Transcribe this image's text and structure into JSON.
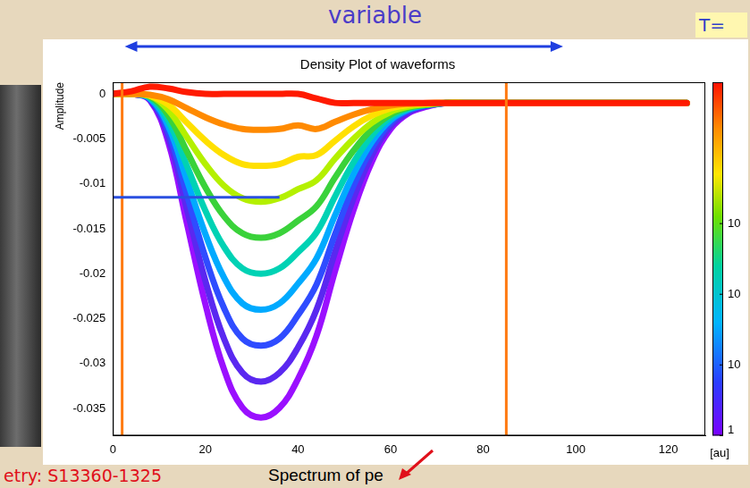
{
  "slide": {
    "title": "variable",
    "corner_text": "T=",
    "footer_left": "etry: S13360-1325",
    "footer_center": "Spectrum of pe"
  },
  "chart_data": {
    "type": "line",
    "title": "Density Plot of waveforms",
    "y_label": "Amplitude",
    "x": [
      0,
      4,
      8,
      12,
      16,
      20,
      24,
      28,
      32,
      36,
      40,
      44,
      48,
      52,
      56,
      60,
      64,
      68,
      72,
      76,
      80,
      84,
      88,
      92,
      96,
      100,
      104,
      108,
      112,
      116,
      120,
      124
    ],
    "series": [
      {
        "color": "#ff1a00",
        "values": [
          0,
          0.0003,
          0.0008,
          0.0006,
          0.0002,
          0,
          0,
          0,
          0,
          0,
          0,
          -0.0005,
          -0.001,
          -0.001,
          -0.001,
          -0.001,
          -0.001,
          -0.001,
          -0.001,
          -0.001,
          -0.001,
          -0.001,
          -0.001,
          -0.001,
          -0.001,
          -0.001,
          -0.001,
          -0.001,
          -0.001,
          -0.001,
          -0.001,
          -0.001
        ]
      },
      {
        "color": "#ff8a00",
        "values": [
          0,
          0,
          -0.0001,
          -0.0006,
          -0.0016,
          -0.0026,
          -0.0034,
          -0.0039,
          -0.004,
          -0.0039,
          -0.0035,
          -0.0039,
          -0.0031,
          -0.0023,
          -0.0017,
          -0.0013,
          -0.0011,
          -0.001,
          -0.001,
          -0.001,
          -0.001,
          -0.001,
          -0.001,
          -0.001,
          -0.001,
          -0.001,
          -0.001,
          -0.001,
          -0.001,
          -0.001,
          -0.001,
          -0.001
        ]
      },
      {
        "color": "#ffe000",
        "values": [
          0,
          0,
          -0.0002,
          -0.0012,
          -0.0032,
          -0.0052,
          -0.0068,
          -0.0078,
          -0.008,
          -0.0078,
          -0.007,
          -0.0068,
          -0.0052,
          -0.0036,
          -0.0024,
          -0.0016,
          -0.0012,
          -0.0011,
          -0.001,
          -0.001,
          -0.001,
          -0.001,
          -0.001,
          -0.001,
          -0.001,
          -0.001,
          -0.001,
          -0.001,
          -0.001,
          -0.001,
          -0.001,
          -0.001
        ]
      },
      {
        "color": "#b4f000",
        "values": [
          0,
          0,
          -0.0002,
          -0.0018,
          -0.0048,
          -0.0078,
          -0.0102,
          -0.0116,
          -0.012,
          -0.0116,
          -0.0106,
          -0.0096,
          -0.0072,
          -0.005,
          -0.0032,
          -0.002,
          -0.0014,
          -0.0011,
          -0.001,
          -0.001,
          -0.001,
          -0.001,
          -0.001,
          -0.001,
          -0.001,
          -0.001,
          -0.001,
          -0.001,
          -0.001,
          -0.001,
          -0.001,
          -0.001
        ]
      },
      {
        "color": "#3ad23a",
        "values": [
          0,
          0,
          -0.0003,
          -0.0024,
          -0.0064,
          -0.0104,
          -0.0136,
          -0.0155,
          -0.016,
          -0.0155,
          -0.0141,
          -0.0125,
          -0.0093,
          -0.0063,
          -0.0039,
          -0.0023,
          -0.0015,
          -0.0012,
          -0.001,
          -0.001,
          -0.001,
          -0.001,
          -0.001,
          -0.001,
          -0.001,
          -0.001,
          -0.001,
          -0.001,
          -0.001,
          -0.001,
          -0.001,
          -0.001
        ]
      },
      {
        "color": "#00d2b4",
        "values": [
          0,
          0,
          -0.0004,
          -0.003,
          -0.008,
          -0.013,
          -0.017,
          -0.0194,
          -0.02,
          -0.0194,
          -0.0176,
          -0.0154,
          -0.0114,
          -0.0076,
          -0.0046,
          -0.0026,
          -0.0016,
          -0.0012,
          -0.001,
          -0.001,
          -0.001,
          -0.001,
          -0.001,
          -0.001,
          -0.001,
          -0.001,
          -0.001,
          -0.001,
          -0.001,
          -0.001,
          -0.001,
          -0.001
        ]
      },
      {
        "color": "#00aaff",
        "values": [
          0,
          0,
          -0.0005,
          -0.0036,
          -0.0096,
          -0.0156,
          -0.0204,
          -0.0233,
          -0.024,
          -0.0233,
          -0.0211,
          -0.0183,
          -0.0135,
          -0.0089,
          -0.0053,
          -0.0029,
          -0.0017,
          -0.0012,
          -0.001,
          -0.001,
          -0.001,
          -0.001,
          -0.001,
          -0.001,
          -0.001,
          -0.001,
          -0.001,
          -0.001,
          -0.001,
          -0.001,
          -0.001,
          -0.001
        ]
      },
      {
        "color": "#2f4cff",
        "values": [
          0,
          0,
          -0.0006,
          -0.0042,
          -0.0112,
          -0.0182,
          -0.0238,
          -0.0272,
          -0.028,
          -0.0272,
          -0.0246,
          -0.0212,
          -0.0156,
          -0.0102,
          -0.006,
          -0.0032,
          -0.0018,
          -0.0013,
          -0.001,
          -0.001,
          -0.001,
          -0.001,
          -0.001,
          -0.001,
          -0.001,
          -0.001,
          -0.001,
          -0.001,
          -0.001,
          -0.001,
          -0.001,
          -0.001
        ]
      },
      {
        "color": "#5a28f0",
        "values": [
          0,
          0,
          -0.0006,
          -0.0048,
          -0.0128,
          -0.0208,
          -0.0272,
          -0.031,
          -0.032,
          -0.031,
          -0.0282,
          -0.024,
          -0.0176,
          -0.0116,
          -0.0068,
          -0.0036,
          -0.002,
          -0.0013,
          -0.001,
          -0.001,
          -0.001,
          -0.001,
          -0.001,
          -0.001,
          -0.001,
          -0.001,
          -0.001,
          -0.001,
          -0.001,
          -0.001,
          -0.001,
          -0.001
        ]
      },
      {
        "color": "#9a10ff",
        "values": [
          0,
          0,
          -0.0007,
          -0.0054,
          -0.0144,
          -0.0234,
          -0.0306,
          -0.0349,
          -0.036,
          -0.0349,
          -0.0317,
          -0.0269,
          -0.0197,
          -0.0129,
          -0.0075,
          -0.0039,
          -0.0021,
          -0.0014,
          -0.001,
          -0.001,
          -0.001,
          -0.001,
          -0.001,
          -0.001,
          -0.001,
          -0.001,
          -0.001,
          -0.001,
          -0.001,
          -0.001,
          -0.001,
          -0.001
        ]
      }
    ],
    "xlim": [
      0,
      128
    ],
    "xticks": [
      0,
      20,
      40,
      60,
      80,
      100,
      120
    ],
    "ylim": [
      -0.038,
      0.0013
    ],
    "yticks": [
      -0.035,
      -0.03,
      -0.025,
      -0.02,
      -0.015,
      -0.01,
      -0.005,
      0
    ],
    "grid": false,
    "marker": "none",
    "vlines": [
      2,
      85
    ],
    "hline": {
      "y": -0.0115,
      "x": [
        0,
        36
      ]
    },
    "colorbar": {
      "range": [
        1,
        100000
      ],
      "log": true,
      "ticks": [
        1,
        {
          "value": 10,
          "label": "10"
        },
        {
          "value": 100,
          "label": "10"
        },
        {
          "value": 1000,
          "label": "10"
        }
      ],
      "label": "[au]"
    }
  }
}
